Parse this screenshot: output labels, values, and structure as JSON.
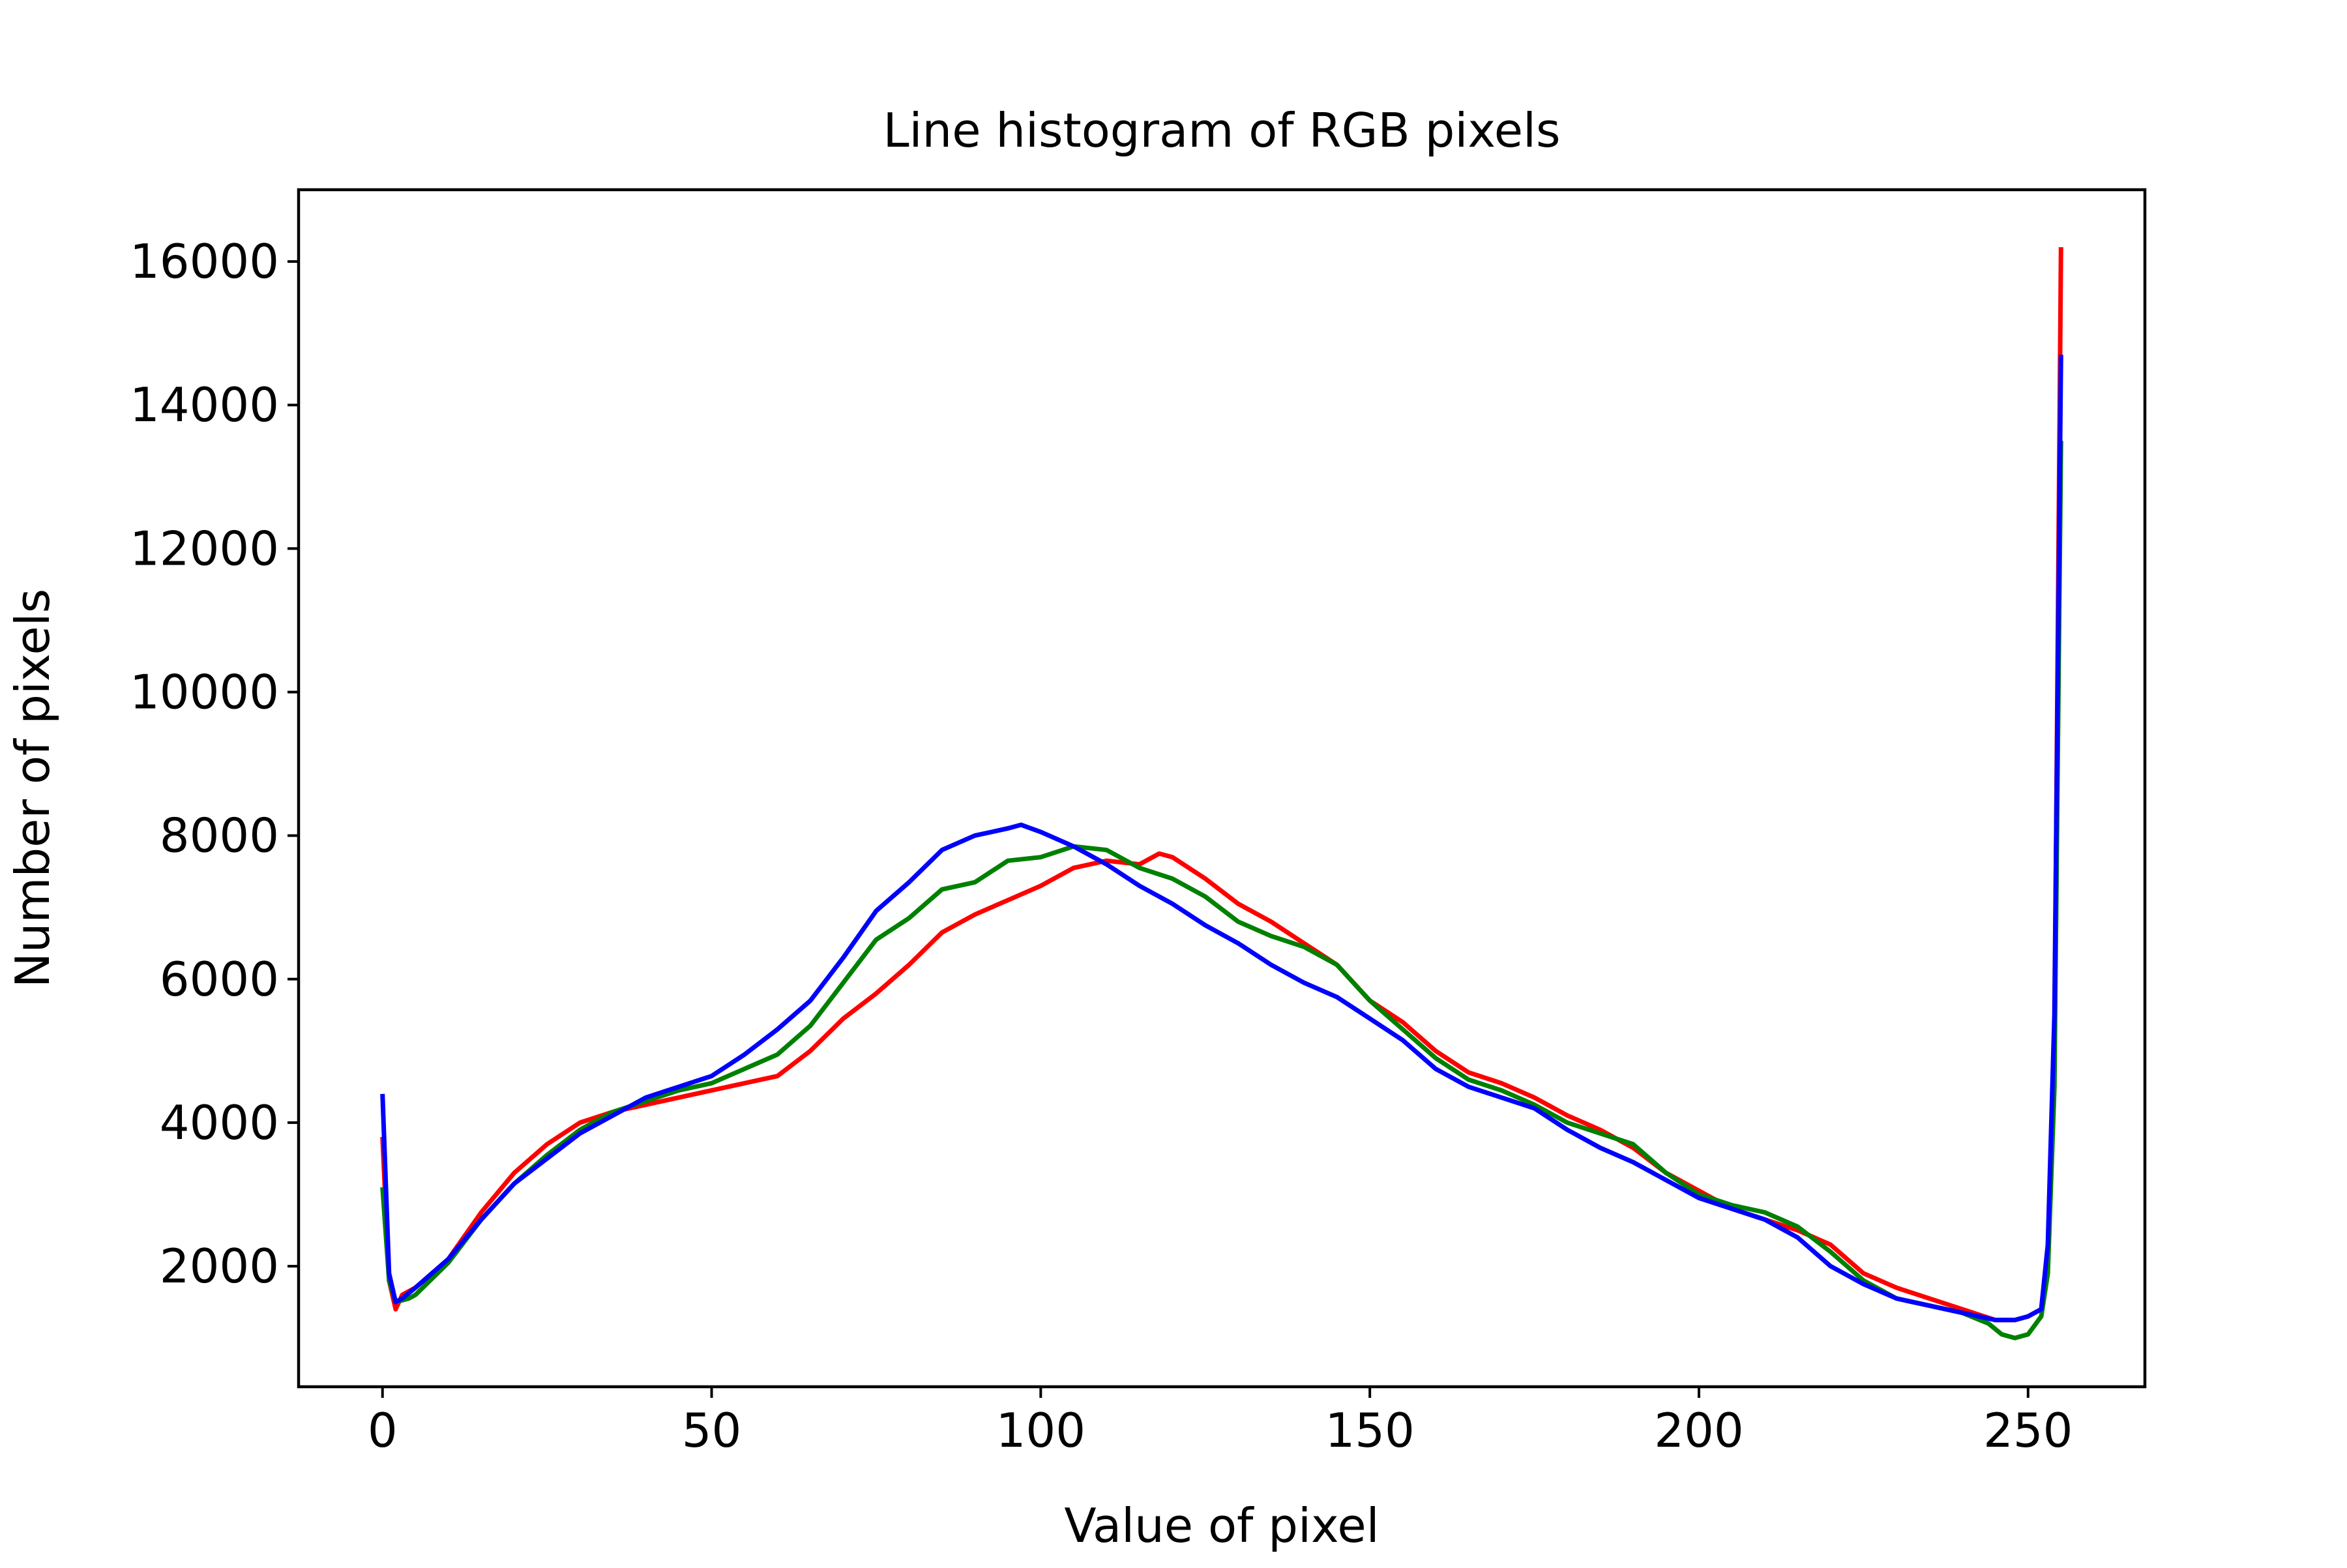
{
  "chart_data": {
    "type": "line",
    "title": "Line histogram of RGB pixels",
    "xlabel": "Value of pixel",
    "ylabel": "Number of pixels",
    "xlim": [
      -12.75,
      267.75
    ],
    "ylim": [
      320,
      17000
    ],
    "xticks": [
      0,
      50,
      100,
      150,
      200,
      250
    ],
    "yticks": [
      2000,
      4000,
      6000,
      8000,
      10000,
      12000,
      14000,
      16000
    ],
    "grid": false,
    "legend": "none",
    "series": [
      {
        "color": "#ff0000",
        "x": [
          0,
          1,
          2,
          3,
          5,
          10,
          15,
          20,
          25,
          30,
          35,
          40,
          45,
          50,
          55,
          60,
          65,
          70,
          75,
          80,
          85,
          90,
          95,
          100,
          105,
          110,
          115,
          118,
          120,
          125,
          130,
          135,
          140,
          145,
          150,
          155,
          160,
          165,
          170,
          175,
          180,
          185,
          190,
          195,
          200,
          205,
          210,
          215,
          220,
          225,
          230,
          235,
          240,
          245,
          248,
          250,
          252,
          253,
          254,
          255
        ],
        "values": [
          3800,
          1800,
          1400,
          1600,
          1700,
          2100,
          2750,
          3300,
          3700,
          4000,
          4150,
          4250,
          4350,
          4450,
          4550,
          4650,
          5000,
          5450,
          5800,
          6200,
          6650,
          6900,
          7100,
          7300,
          7550,
          7650,
          7600,
          7750,
          7700,
          7400,
          7050,
          6800,
          6500,
          6200,
          5700,
          5400,
          5000,
          4700,
          4550,
          4350,
          4100,
          3900,
          3650,
          3300,
          3050,
          2800,
          2650,
          2500,
          2300,
          1900,
          1700,
          1550,
          1400,
          1250,
          1250,
          1300,
          1400,
          2200,
          5000,
          16200
        ]
      },
      {
        "color": "#008000",
        "x": [
          0,
          1,
          2,
          4,
          5,
          10,
          15,
          20,
          25,
          30,
          35,
          40,
          45,
          50,
          55,
          60,
          65,
          70,
          75,
          80,
          85,
          90,
          95,
          100,
          105,
          110,
          115,
          120,
          125,
          130,
          135,
          140,
          145,
          150,
          155,
          160,
          165,
          170,
          175,
          180,
          185,
          190,
          195,
          200,
          205,
          210,
          215,
          220,
          225,
          230,
          235,
          240,
          244,
          246,
          248,
          250,
          252,
          253,
          254,
          255
        ],
        "values": [
          3100,
          1800,
          1500,
          1550,
          1600,
          2050,
          2650,
          3150,
          3550,
          3900,
          4150,
          4300,
          4450,
          4550,
          4750,
          4950,
          5350,
          5950,
          6550,
          6850,
          7250,
          7350,
          7650,
          7700,
          7850,
          7800,
          7550,
          7400,
          7150,
          6800,
          6600,
          6450,
          6200,
          5700,
          5300,
          4900,
          4600,
          4450,
          4250,
          4000,
          3850,
          3700,
          3300,
          3000,
          2850,
          2750,
          2550,
          2200,
          1800,
          1550,
          1450,
          1350,
          1200,
          1050,
          1000,
          1050,
          1300,
          1900,
          4500,
          13500
        ]
      },
      {
        "color": "#0000ff",
        "x": [
          0,
          1,
          2,
          3,
          5,
          10,
          15,
          20,
          25,
          30,
          35,
          40,
          45,
          50,
          55,
          60,
          65,
          70,
          75,
          80,
          85,
          90,
          95,
          97,
          100,
          105,
          110,
          115,
          120,
          125,
          130,
          135,
          140,
          145,
          150,
          155,
          160,
          165,
          170,
          175,
          180,
          185,
          190,
          195,
          200,
          205,
          210,
          215,
          220,
          225,
          230,
          235,
          240,
          245,
          248,
          250,
          252,
          253,
          254,
          255
        ],
        "values": [
          4400,
          1900,
          1500,
          1550,
          1700,
          2100,
          2650,
          3150,
          3500,
          3850,
          4100,
          4350,
          4500,
          4650,
          4950,
          5300,
          5700,
          6300,
          6950,
          7350,
          7800,
          8000,
          8100,
          8150,
          8050,
          7850,
          7600,
          7300,
          7050,
          6750,
          6500,
          6200,
          5950,
          5750,
          5450,
          5150,
          4750,
          4500,
          4350,
          4200,
          3900,
          3650,
          3450,
          3200,
          2950,
          2800,
          2650,
          2400,
          2000,
          1750,
          1550,
          1450,
          1350,
          1250,
          1250,
          1300,
          1400,
          2300,
          5500,
          14700
        ]
      }
    ]
  }
}
